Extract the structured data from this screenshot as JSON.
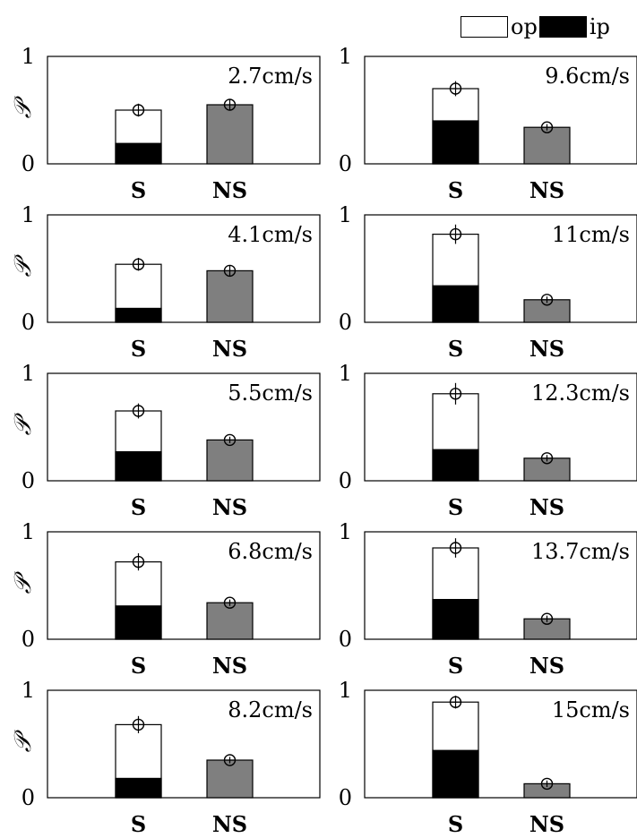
{
  "legend": {
    "items": [
      {
        "label": "op",
        "color": "#ffffff"
      },
      {
        "label": "ip",
        "color": "#000000"
      }
    ]
  },
  "chart_data": {
    "type": "bar",
    "categories": [
      "S",
      "NS"
    ],
    "ylabel": "𝒫",
    "ylim": [
      0,
      1
    ],
    "yticks": [
      "0",
      "1"
    ],
    "colors": {
      "op": "#ffffff",
      "ip": "#000000",
      "NS": "#7f7f7f"
    },
    "panels": [
      {
        "speed": "2.7cm/s",
        "S_total": 0.5,
        "S_ip": 0.19,
        "S_err": 0.06,
        "NS": 0.55,
        "NS_err": 0.05
      },
      {
        "speed": "9.6cm/s",
        "S_total": 0.7,
        "S_ip": 0.4,
        "S_err": 0.07,
        "NS": 0.34,
        "NS_err": 0.03
      },
      {
        "speed": "4.1cm/s",
        "S_total": 0.54,
        "S_ip": 0.13,
        "S_err": 0.06,
        "NS": 0.48,
        "NS_err": 0.05
      },
      {
        "speed": "11cm/s",
        "S_total": 0.82,
        "S_ip": 0.34,
        "S_err": 0.09,
        "NS": 0.21,
        "NS_err": 0.03
      },
      {
        "speed": "5.5cm/s",
        "S_total": 0.65,
        "S_ip": 0.27,
        "S_err": 0.07,
        "NS": 0.38,
        "NS_err": 0.03
      },
      {
        "speed": "12.3cm/s",
        "S_total": 0.81,
        "S_ip": 0.29,
        "S_err": 0.1,
        "NS": 0.21,
        "NS_err": 0.03
      },
      {
        "speed": "6.8cm/s",
        "S_total": 0.72,
        "S_ip": 0.31,
        "S_err": 0.08,
        "NS": 0.34,
        "NS_err": 0.03
      },
      {
        "speed": "13.7cm/s",
        "S_total": 0.85,
        "S_ip": 0.37,
        "S_err": 0.09,
        "NS": 0.19,
        "NS_err": 0.03
      },
      {
        "speed": "8.2cm/s",
        "S_total": 0.68,
        "S_ip": 0.18,
        "S_err": 0.08,
        "NS": 0.35,
        "NS_err": 0.03
      },
      {
        "speed": "15cm/s",
        "S_total": 0.89,
        "S_ip": 0.44,
        "S_err": 0.06,
        "NS": 0.13,
        "NS_err": 0.03
      }
    ]
  }
}
